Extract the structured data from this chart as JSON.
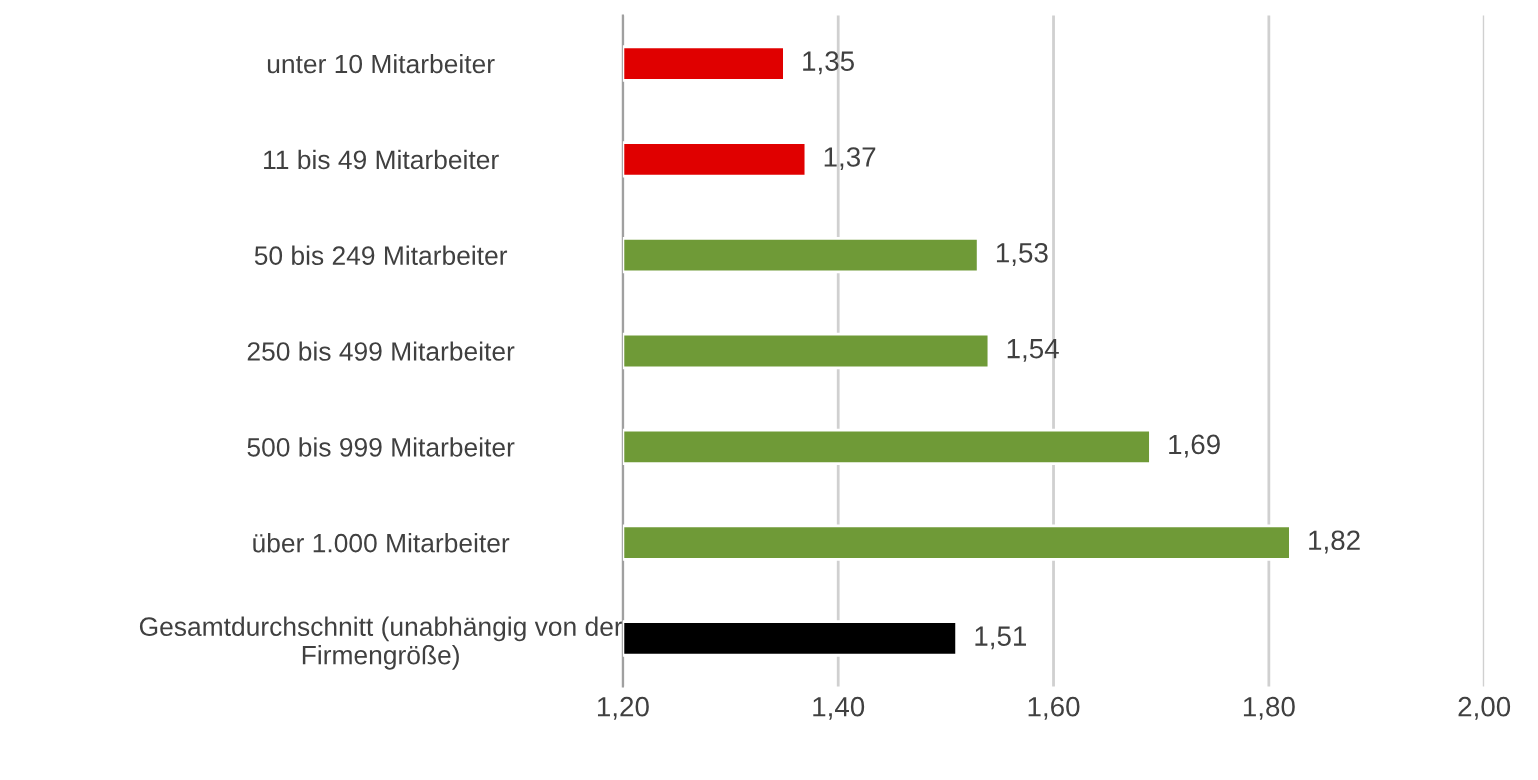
{
  "chart_data": {
    "type": "bar",
    "orientation": "horizontal",
    "categories": [
      "unter 10 Mitarbeiter",
      "11 bis 49 Mitarbeiter",
      "50 bis 249 Mitarbeiter",
      "250 bis 499 Mitarbeiter",
      "500 bis 999 Mitarbeiter",
      "über 1.000 Mitarbeiter",
      "Gesamtdurchschnitt (unabhängig von der\nFirmengröße)"
    ],
    "values": [
      1.35,
      1.37,
      1.53,
      1.54,
      1.69,
      1.82,
      1.51
    ],
    "value_labels": [
      "1,35",
      "1,37",
      "1,53",
      "1,54",
      "1,69",
      "1,82",
      "1,51"
    ],
    "colors": [
      "#e00000",
      "#e00000",
      "#6f9a37",
      "#6f9a37",
      "#6f9a37",
      "#6f9a37",
      "#000000"
    ],
    "xlim": [
      1.2,
      2.0
    ],
    "xticks": [
      {
        "value": 1.2,
        "label": "1,20"
      },
      {
        "value": 1.4,
        "label": "1,40"
      },
      {
        "value": 1.6,
        "label": "1,60"
      },
      {
        "value": 1.8,
        "label": "1,80"
      },
      {
        "value": 2.0,
        "label": "2,00"
      }
    ],
    "grid": "x",
    "legend": false
  }
}
